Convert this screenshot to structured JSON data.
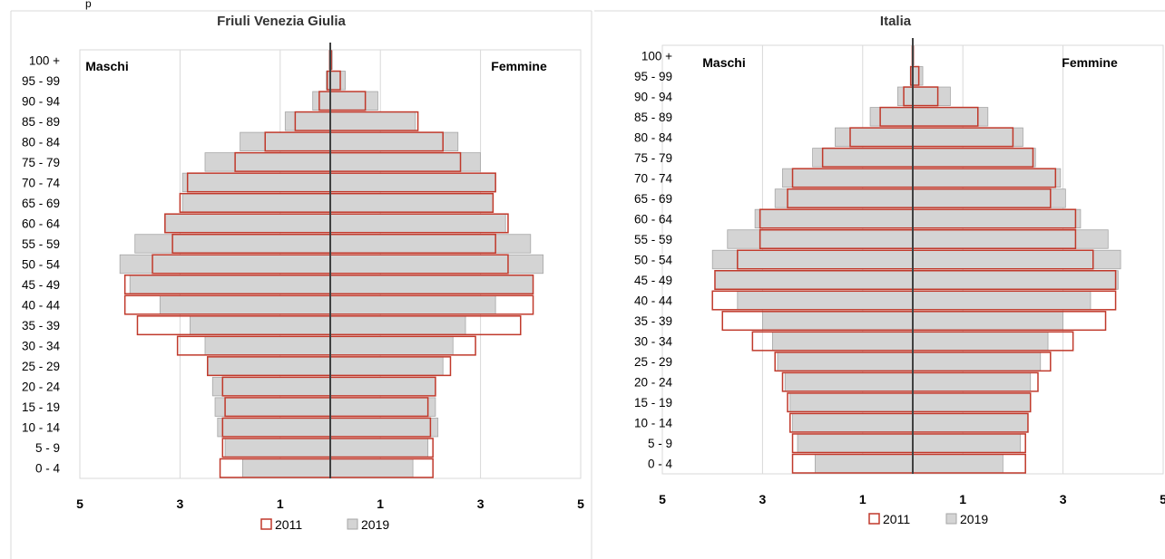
{
  "header_fragment": "p",
  "chart_data": [
    {
      "type": "bar",
      "title": "Friuli Venezia Giulia",
      "categories": [
        "0 - 4",
        "5 - 9",
        "10 - 14",
        "15 - 19",
        "20 - 24",
        "25 - 29",
        "30 - 34",
        "35 - 39",
        "40 - 44",
        "45 - 49",
        "50 - 54",
        "55 - 59",
        "60 - 64",
        "65 - 69",
        "70 - 74",
        "75 - 79",
        "80 - 84",
        "85 - 89",
        "90 - 94",
        "95 - 99",
        "100 +"
      ],
      "x_tick_labels": [
        "5",
        "3",
        "1",
        "1",
        "3",
        "5"
      ],
      "xlim": [
        -5,
        5
      ],
      "left_label": "Maschi",
      "right_label": "Femmine",
      "series": [
        {
          "name": "2019",
          "style": "filled",
          "color": "#d4d4d4",
          "maschi": [
            1.75,
            2.1,
            2.25,
            2.3,
            2.35,
            2.45,
            2.5,
            2.8,
            3.4,
            4.0,
            4.2,
            3.9,
            3.3,
            2.95,
            2.95,
            2.5,
            1.8,
            0.9,
            0.35,
            0.08,
            0.02
          ],
          "femmine": [
            1.65,
            1.95,
            2.15,
            2.1,
            2.1,
            2.25,
            2.45,
            2.7,
            3.3,
            4.05,
            4.25,
            4.0,
            3.5,
            3.25,
            3.3,
            3.0,
            2.55,
            1.7,
            0.95,
            0.3,
            0.04
          ]
        },
        {
          "name": "2011",
          "style": "outline",
          "color": "#c0392b",
          "maschi": [
            2.2,
            2.15,
            2.15,
            2.1,
            2.15,
            2.45,
            3.05,
            3.85,
            4.1,
            4.1,
            3.55,
            3.15,
            3.3,
            3.0,
            2.85,
            1.9,
            1.3,
            0.7,
            0.22,
            0.06,
            0.01
          ],
          "femmine": [
            2.05,
            2.05,
            2.0,
            1.95,
            2.1,
            2.4,
            2.9,
            3.8,
            4.05,
            4.05,
            3.55,
            3.3,
            3.55,
            3.25,
            3.3,
            2.6,
            2.25,
            1.75,
            0.7,
            0.2,
            0.02
          ]
        }
      ]
    },
    {
      "type": "bar",
      "title": "Italia",
      "categories": [
        "0 - 4",
        "5 - 9",
        "10 - 14",
        "15 - 19",
        "20 - 24",
        "25 - 29",
        "30 - 34",
        "35 - 39",
        "40 - 44",
        "45 - 49",
        "50 - 54",
        "55 - 59",
        "60 - 64",
        "65 - 69",
        "70 - 74",
        "75 - 79",
        "80 - 84",
        "85 - 89",
        "90 - 94",
        "95 - 99",
        "100 +"
      ],
      "x_tick_labels": [
        "5",
        "3",
        "1",
        "1",
        "3",
        "5"
      ],
      "xlim": [
        -5,
        5
      ],
      "left_label": "Maschi",
      "right_label": "Femmine",
      "series": [
        {
          "name": "2019",
          "style": "filled",
          "color": "#d4d4d4",
          "maschi": [
            1.95,
            2.3,
            2.4,
            2.45,
            2.55,
            2.7,
            2.8,
            3.0,
            3.5,
            3.95,
            4.0,
            3.7,
            3.15,
            2.75,
            2.6,
            2.0,
            1.55,
            0.85,
            0.3,
            0.05,
            0.01
          ],
          "femmine": [
            1.8,
            2.15,
            2.3,
            2.35,
            2.35,
            2.55,
            2.7,
            3.0,
            3.55,
            4.1,
            4.15,
            3.9,
            3.35,
            3.05,
            2.95,
            2.45,
            2.2,
            1.5,
            0.75,
            0.2,
            0.02
          ]
        },
        {
          "name": "2011",
          "style": "outline",
          "color": "#c0392b",
          "maschi": [
            2.4,
            2.4,
            2.45,
            2.5,
            2.6,
            2.75,
            3.2,
            3.8,
            4.0,
            3.95,
            3.5,
            3.05,
            3.05,
            2.5,
            2.4,
            1.8,
            1.25,
            0.65,
            0.18,
            0.04,
            0.01
          ],
          "femmine": [
            2.25,
            2.25,
            2.3,
            2.35,
            2.5,
            2.75,
            3.2,
            3.85,
            4.05,
            4.05,
            3.6,
            3.25,
            3.25,
            2.75,
            2.85,
            2.4,
            2.0,
            1.3,
            0.5,
            0.12,
            0.01
          ]
        }
      ]
    }
  ]
}
